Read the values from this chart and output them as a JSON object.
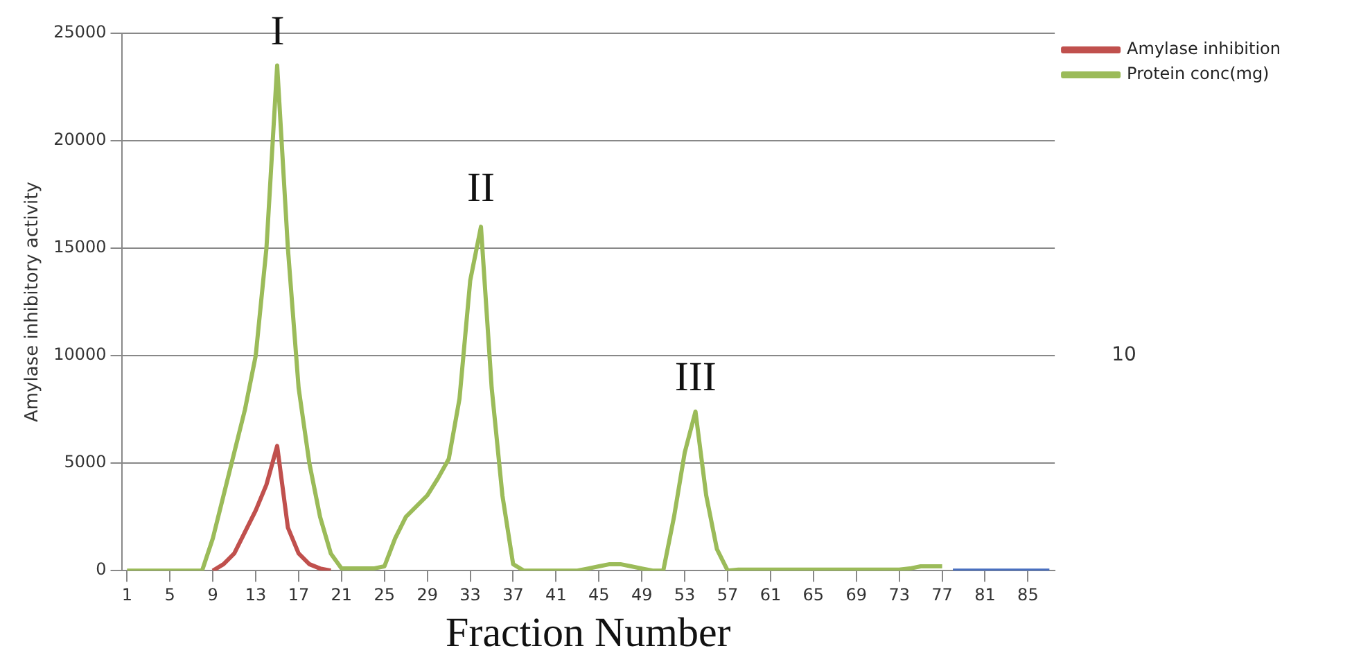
{
  "chart_data": {
    "type": "line",
    "xlabel": "Fraction Number",
    "ylabel": "Amylase inhibitory activity",
    "x": [
      1,
      2,
      3,
      4,
      5,
      6,
      7,
      8,
      9,
      10,
      11,
      12,
      13,
      14,
      15,
      16,
      17,
      18,
      19,
      20,
      21,
      22,
      23,
      24,
      25,
      26,
      27,
      28,
      29,
      30,
      31,
      32,
      33,
      34,
      35,
      36,
      37,
      38,
      39,
      40,
      41,
      42,
      43,
      44,
      45,
      46,
      47,
      48,
      49,
      50,
      51,
      52,
      53,
      54,
      55,
      56,
      57,
      58,
      59,
      60,
      61,
      62,
      63,
      64,
      65,
      66,
      67,
      68,
      69,
      70,
      71,
      72,
      73,
      74,
      75,
      76,
      77,
      78,
      79,
      80,
      81,
      82,
      83,
      84,
      85,
      86,
      87
    ],
    "series": [
      {
        "name": "Amylase inhibition",
        "color": "#c0504d",
        "values": [
          null,
          null,
          null,
          null,
          null,
          null,
          null,
          null,
          0,
          300,
          800,
          1800,
          2800,
          4000,
          5800,
          2000,
          800,
          300,
          100,
          0,
          null,
          null,
          null,
          null,
          null,
          null,
          null,
          null,
          null,
          null,
          null,
          null,
          null,
          null,
          null,
          null,
          null,
          null,
          null,
          null,
          null,
          null,
          null,
          null,
          null,
          null,
          null,
          null,
          null,
          null,
          null,
          null,
          null,
          null,
          null,
          null,
          null,
          null,
          null,
          null,
          null,
          null,
          null,
          null,
          null,
          null,
          null,
          null,
          null,
          null,
          null,
          null,
          null,
          null,
          null,
          null,
          null,
          null,
          null,
          null,
          null,
          null,
          null,
          null,
          null,
          null,
          null
        ]
      },
      {
        "name": "Protein conc(mg)",
        "color": "#9bbb59",
        "values": [
          0,
          0,
          0,
          0,
          0,
          0,
          0,
          0,
          1500,
          3500,
          5500,
          7500,
          10000,
          15000,
          23500,
          15000,
          8500,
          5000,
          2500,
          800,
          100,
          100,
          100,
          100,
          200,
          1500,
          2500,
          3000,
          3500,
          4300,
          5200,
          8000,
          13500,
          16000,
          8500,
          3500,
          300,
          0,
          0,
          0,
          0,
          0,
          0,
          100,
          200,
          300,
          300,
          200,
          100,
          0,
          0,
          2500,
          5500,
          7400,
          3500,
          1000,
          0,
          50,
          50,
          50,
          50,
          50,
          50,
          50,
          50,
          50,
          50,
          50,
          50,
          50,
          50,
          50,
          50,
          100,
          200,
          200,
          200,
          null,
          null,
          null,
          null,
          null,
          null,
          null,
          null,
          null,
          null
        ]
      },
      {
        "color": "#4a70c0",
        "values": [
          null,
          null,
          null,
          null,
          null,
          null,
          null,
          null,
          null,
          null,
          null,
          null,
          null,
          null,
          null,
          null,
          null,
          null,
          null,
          null,
          null,
          null,
          null,
          null,
          null,
          null,
          null,
          null,
          null,
          null,
          null,
          null,
          null,
          null,
          null,
          null,
          null,
          null,
          null,
          null,
          null,
          null,
          null,
          null,
          null,
          null,
          null,
          null,
          null,
          null,
          null,
          null,
          null,
          null,
          null,
          null,
          null,
          null,
          null,
          null,
          null,
          null,
          null,
          null,
          null,
          null,
          null,
          null,
          null,
          null,
          null,
          null,
          null,
          null,
          null,
          null,
          null,
          0,
          0,
          0,
          0,
          0,
          0,
          0,
          0,
          0,
          0
        ]
      }
    ],
    "xlim": [
      0.5,
      87.5
    ],
    "xticks": [
      1,
      5,
      9,
      13,
      17,
      21,
      25,
      29,
      33,
      37,
      41,
      45,
      49,
      53,
      57,
      61,
      65,
      69,
      73,
      77,
      81,
      85
    ],
    "ylim": [
      0,
      25000
    ],
    "yticks": [
      0,
      5000,
      10000,
      15000,
      20000,
      25000
    ],
    "grid": "y",
    "legend": "top right",
    "marker": "none",
    "line_style": "solid",
    "annotations": [
      "I",
      "II",
      "III",
      "10"
    ]
  }
}
